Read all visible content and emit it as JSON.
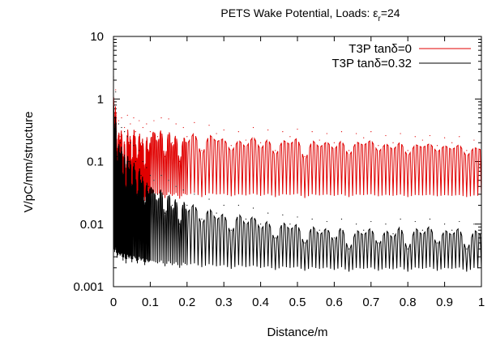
{
  "chart_data": {
    "type": "line",
    "title": "PETS Wake Potential, Loads: ε",
    "title_sub": "r",
    "title_tail": "=24",
    "xlabel": "Distance/m",
    "ylabel": "V/pC/mm/structure",
    "xlim": [
      0,
      1
    ],
    "ylim": [
      0.001,
      10
    ],
    "yscale": "log",
    "x_ticks": [
      0,
      0.1,
      0.2,
      0.3,
      0.4,
      0.5,
      0.6,
      0.7,
      0.8,
      0.9,
      1
    ],
    "x_tick_labels": [
      "0",
      "0.1",
      "0.2",
      "0.3",
      "0.4",
      "0.5",
      "0.6",
      "0.7",
      "0.8",
      "0.9",
      "1"
    ],
    "y_ticks": [
      0.001,
      0.01,
      0.1,
      1,
      10
    ],
    "y_tick_labels": [
      "0.001",
      "0.01",
      "0.1",
      "1",
      "10"
    ],
    "grid": false,
    "legend_position": "top-right",
    "series": [
      {
        "name": "T3P tanδ=0",
        "color": "#e00000",
        "x": [
          0.0,
          0.003,
          0.006,
          0.01,
          0.014,
          0.018,
          0.022,
          0.026,
          0.03,
          0.034,
          0.038,
          0.042,
          0.046,
          0.05,
          0.055,
          0.06,
          0.065,
          0.07,
          0.075,
          0.08,
          0.085,
          0.09,
          0.095,
          0.1,
          0.11,
          0.12,
          0.13,
          0.14,
          0.15,
          0.16,
          0.17,
          0.18,
          0.19,
          0.2,
          0.22,
          0.24,
          0.26,
          0.28,
          0.3,
          0.32,
          0.34,
          0.36,
          0.38,
          0.4,
          0.42,
          0.44,
          0.46,
          0.48,
          0.5,
          0.52,
          0.54,
          0.56,
          0.58,
          0.6,
          0.62,
          0.64,
          0.66,
          0.68,
          0.7,
          0.72,
          0.74,
          0.76,
          0.78,
          0.8,
          0.82,
          0.84,
          0.86,
          0.88,
          0.9,
          0.92,
          0.94,
          0.96,
          0.98,
          1.0
        ],
        "y": [
          2.2,
          0.6,
          1.4,
          0.15,
          0.45,
          0.25,
          0.5,
          0.1,
          0.35,
          0.05,
          0.55,
          0.2,
          0.4,
          0.08,
          0.5,
          0.3,
          0.1,
          0.45,
          0.2,
          0.35,
          0.06,
          0.4,
          0.15,
          0.3,
          0.45,
          0.25,
          0.5,
          0.12,
          0.48,
          0.2,
          0.4,
          0.1,
          0.35,
          0.25,
          0.42,
          0.15,
          0.38,
          0.28,
          0.32,
          0.18,
          0.3,
          0.22,
          0.35,
          0.2,
          0.32,
          0.15,
          0.3,
          0.25,
          0.33,
          0.12,
          0.3,
          0.22,
          0.28,
          0.2,
          0.3,
          0.15,
          0.28,
          0.24,
          0.3,
          0.18,
          0.26,
          0.2,
          0.28,
          0.15,
          0.25,
          0.22,
          0.26,
          0.18,
          0.24,
          0.2,
          0.25,
          0.15,
          0.22,
          0.2
        ]
      },
      {
        "name": "T3P tanδ=0.32",
        "color": "#000000",
        "x": [
          0.0,
          0.003,
          0.006,
          0.01,
          0.014,
          0.018,
          0.022,
          0.026,
          0.03,
          0.034,
          0.038,
          0.042,
          0.046,
          0.05,
          0.055,
          0.06,
          0.065,
          0.07,
          0.075,
          0.08,
          0.085,
          0.09,
          0.095,
          0.1,
          0.11,
          0.12,
          0.13,
          0.14,
          0.15,
          0.16,
          0.17,
          0.18,
          0.19,
          0.2,
          0.22,
          0.24,
          0.26,
          0.28,
          0.3,
          0.32,
          0.34,
          0.36,
          0.38,
          0.4,
          0.42,
          0.44,
          0.46,
          0.48,
          0.5,
          0.52,
          0.54,
          0.56,
          0.58,
          0.6,
          0.62,
          0.64,
          0.66,
          0.68,
          0.7,
          0.72,
          0.74,
          0.76,
          0.78,
          0.8,
          0.82,
          0.84,
          0.86,
          0.88,
          0.9,
          0.92,
          0.94,
          0.96,
          0.98,
          1.0
        ],
        "y": [
          2.3,
          0.5,
          1.3,
          0.12,
          0.4,
          0.2,
          0.35,
          0.06,
          0.3,
          0.03,
          0.25,
          0.1,
          0.2,
          0.04,
          0.18,
          0.1,
          0.03,
          0.15,
          0.06,
          0.1,
          0.02,
          0.08,
          0.04,
          0.06,
          0.05,
          0.03,
          0.06,
          0.015,
          0.05,
          0.02,
          0.04,
          0.01,
          0.035,
          0.02,
          0.03,
          0.012,
          0.025,
          0.015,
          0.02,
          0.008,
          0.02,
          0.012,
          0.018,
          0.01,
          0.015,
          0.006,
          0.014,
          0.01,
          0.013,
          0.005,
          0.012,
          0.008,
          0.011,
          0.006,
          0.012,
          0.004,
          0.01,
          0.008,
          0.011,
          0.005,
          0.01,
          0.007,
          0.012,
          0.004,
          0.011,
          0.008,
          0.012,
          0.005,
          0.01,
          0.008,
          0.011,
          0.004,
          0.01,
          0.008
        ]
      }
    ]
  }
}
